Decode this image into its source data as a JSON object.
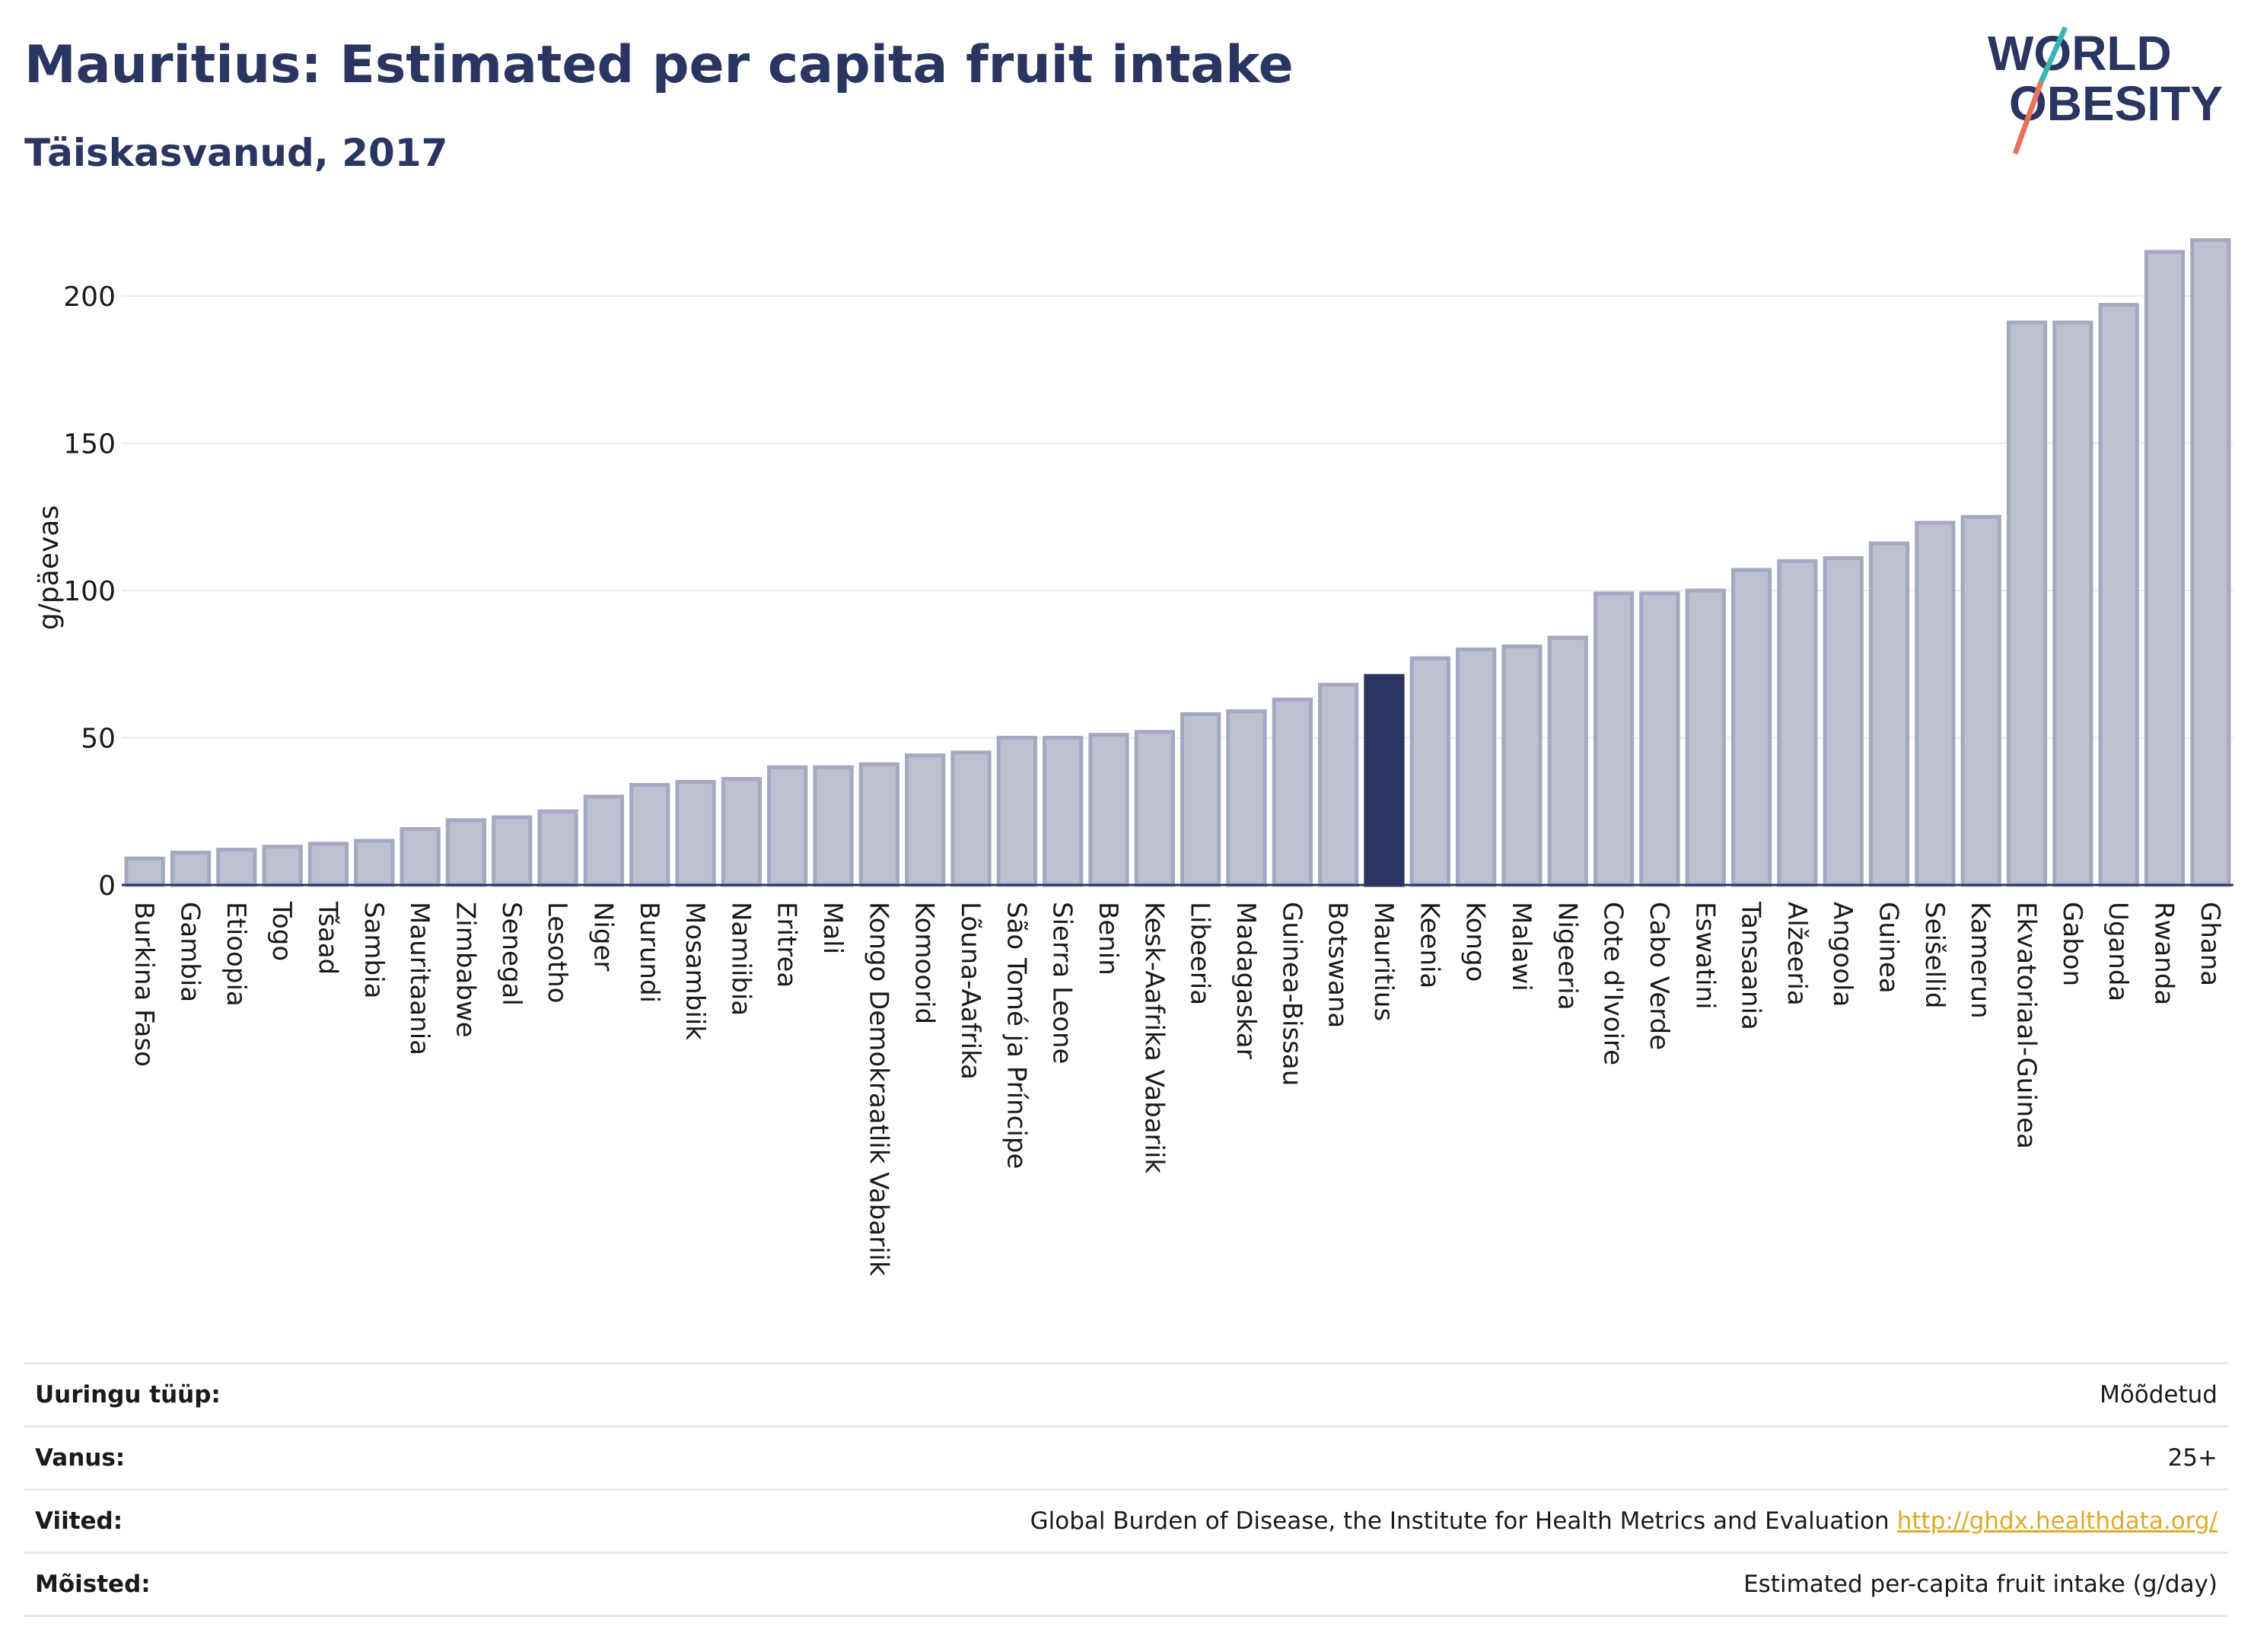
{
  "header": {
    "title": "Mauritius: Estimated per capita fruit intake",
    "subtitle": "Täiskasvanud, 2017",
    "logo_line1": "WORLD",
    "logo_line2": "OBESITY"
  },
  "colors": {
    "title": "#2b3561",
    "bar": "#bcc0d1",
    "bar_border": "#a4a9c0",
    "highlight": "#2b3561",
    "grid": "#e8eaef",
    "link": "#e0a92a",
    "logo_teal": "#3ab5b5",
    "logo_coral": "#e8735c"
  },
  "chart_data": {
    "type": "bar",
    "title": "Mauritius: Estimated per capita fruit intake",
    "subtitle": "Täiskasvanud, 2017",
    "ylabel": "g/päevas",
    "ylim": [
      0,
      220
    ],
    "yticks": [
      0,
      50,
      100,
      150,
      200
    ],
    "grid": true,
    "highlight": "Mauritius",
    "categories": [
      "Burkina Faso",
      "Gambia",
      "Etioopia",
      "Togo",
      "Tšaad",
      "Sambia",
      "Mauritaania",
      "Zimbabwe",
      "Senegal",
      "Lesotho",
      "Niger",
      "Burundi",
      "Mosambiik",
      "Namiibia",
      "Eritrea",
      "Mali",
      "Kongo Demokraatlik Vabariik",
      "Komoorid",
      "Lõuna-Aafrika",
      "São Tomé ja Príncipe",
      "Sierra Leone",
      "Benin",
      "Kesk-Aafrika Vabariik",
      "Libeeria",
      "Madagaskar",
      "Guinea-Bissau",
      "Botswana",
      "Mauritius",
      "Keenia",
      "Kongo",
      "Malawi",
      "Nigeeria",
      "Cote d'Ivoire",
      "Cabo Verde",
      "Eswatini",
      "Tansaania",
      "Alžeeria",
      "Angoola",
      "Guinea",
      "Seišellid",
      "Kamerun",
      "Ekvatoriaal-Guinea",
      "Gabon",
      "Uganda",
      "Rwanda",
      "Ghana"
    ],
    "values": [
      9,
      11,
      12,
      13,
      14,
      15,
      19,
      22,
      23,
      25,
      30,
      34,
      35,
      36,
      40,
      40,
      41,
      44,
      45,
      50,
      50,
      51,
      52,
      58,
      59,
      63,
      68,
      71,
      77,
      80,
      81,
      84,
      99,
      99,
      100,
      107,
      110,
      111,
      116,
      123,
      125,
      191,
      191,
      197,
      215,
      219
    ]
  },
  "meta": {
    "rows": [
      {
        "label": "Uuringu tüüp:",
        "value": "Mõõdetud"
      },
      {
        "label": "Vanus:",
        "value": "25+"
      },
      {
        "label": "Viited:",
        "value": "Global Burden of Disease, the Institute for Health Metrics and Evaluation",
        "link": "http://ghdx.healthdata.org/"
      },
      {
        "label": "Mõisted:",
        "value": "Estimated per-capita fruit intake (g/day)"
      }
    ]
  }
}
